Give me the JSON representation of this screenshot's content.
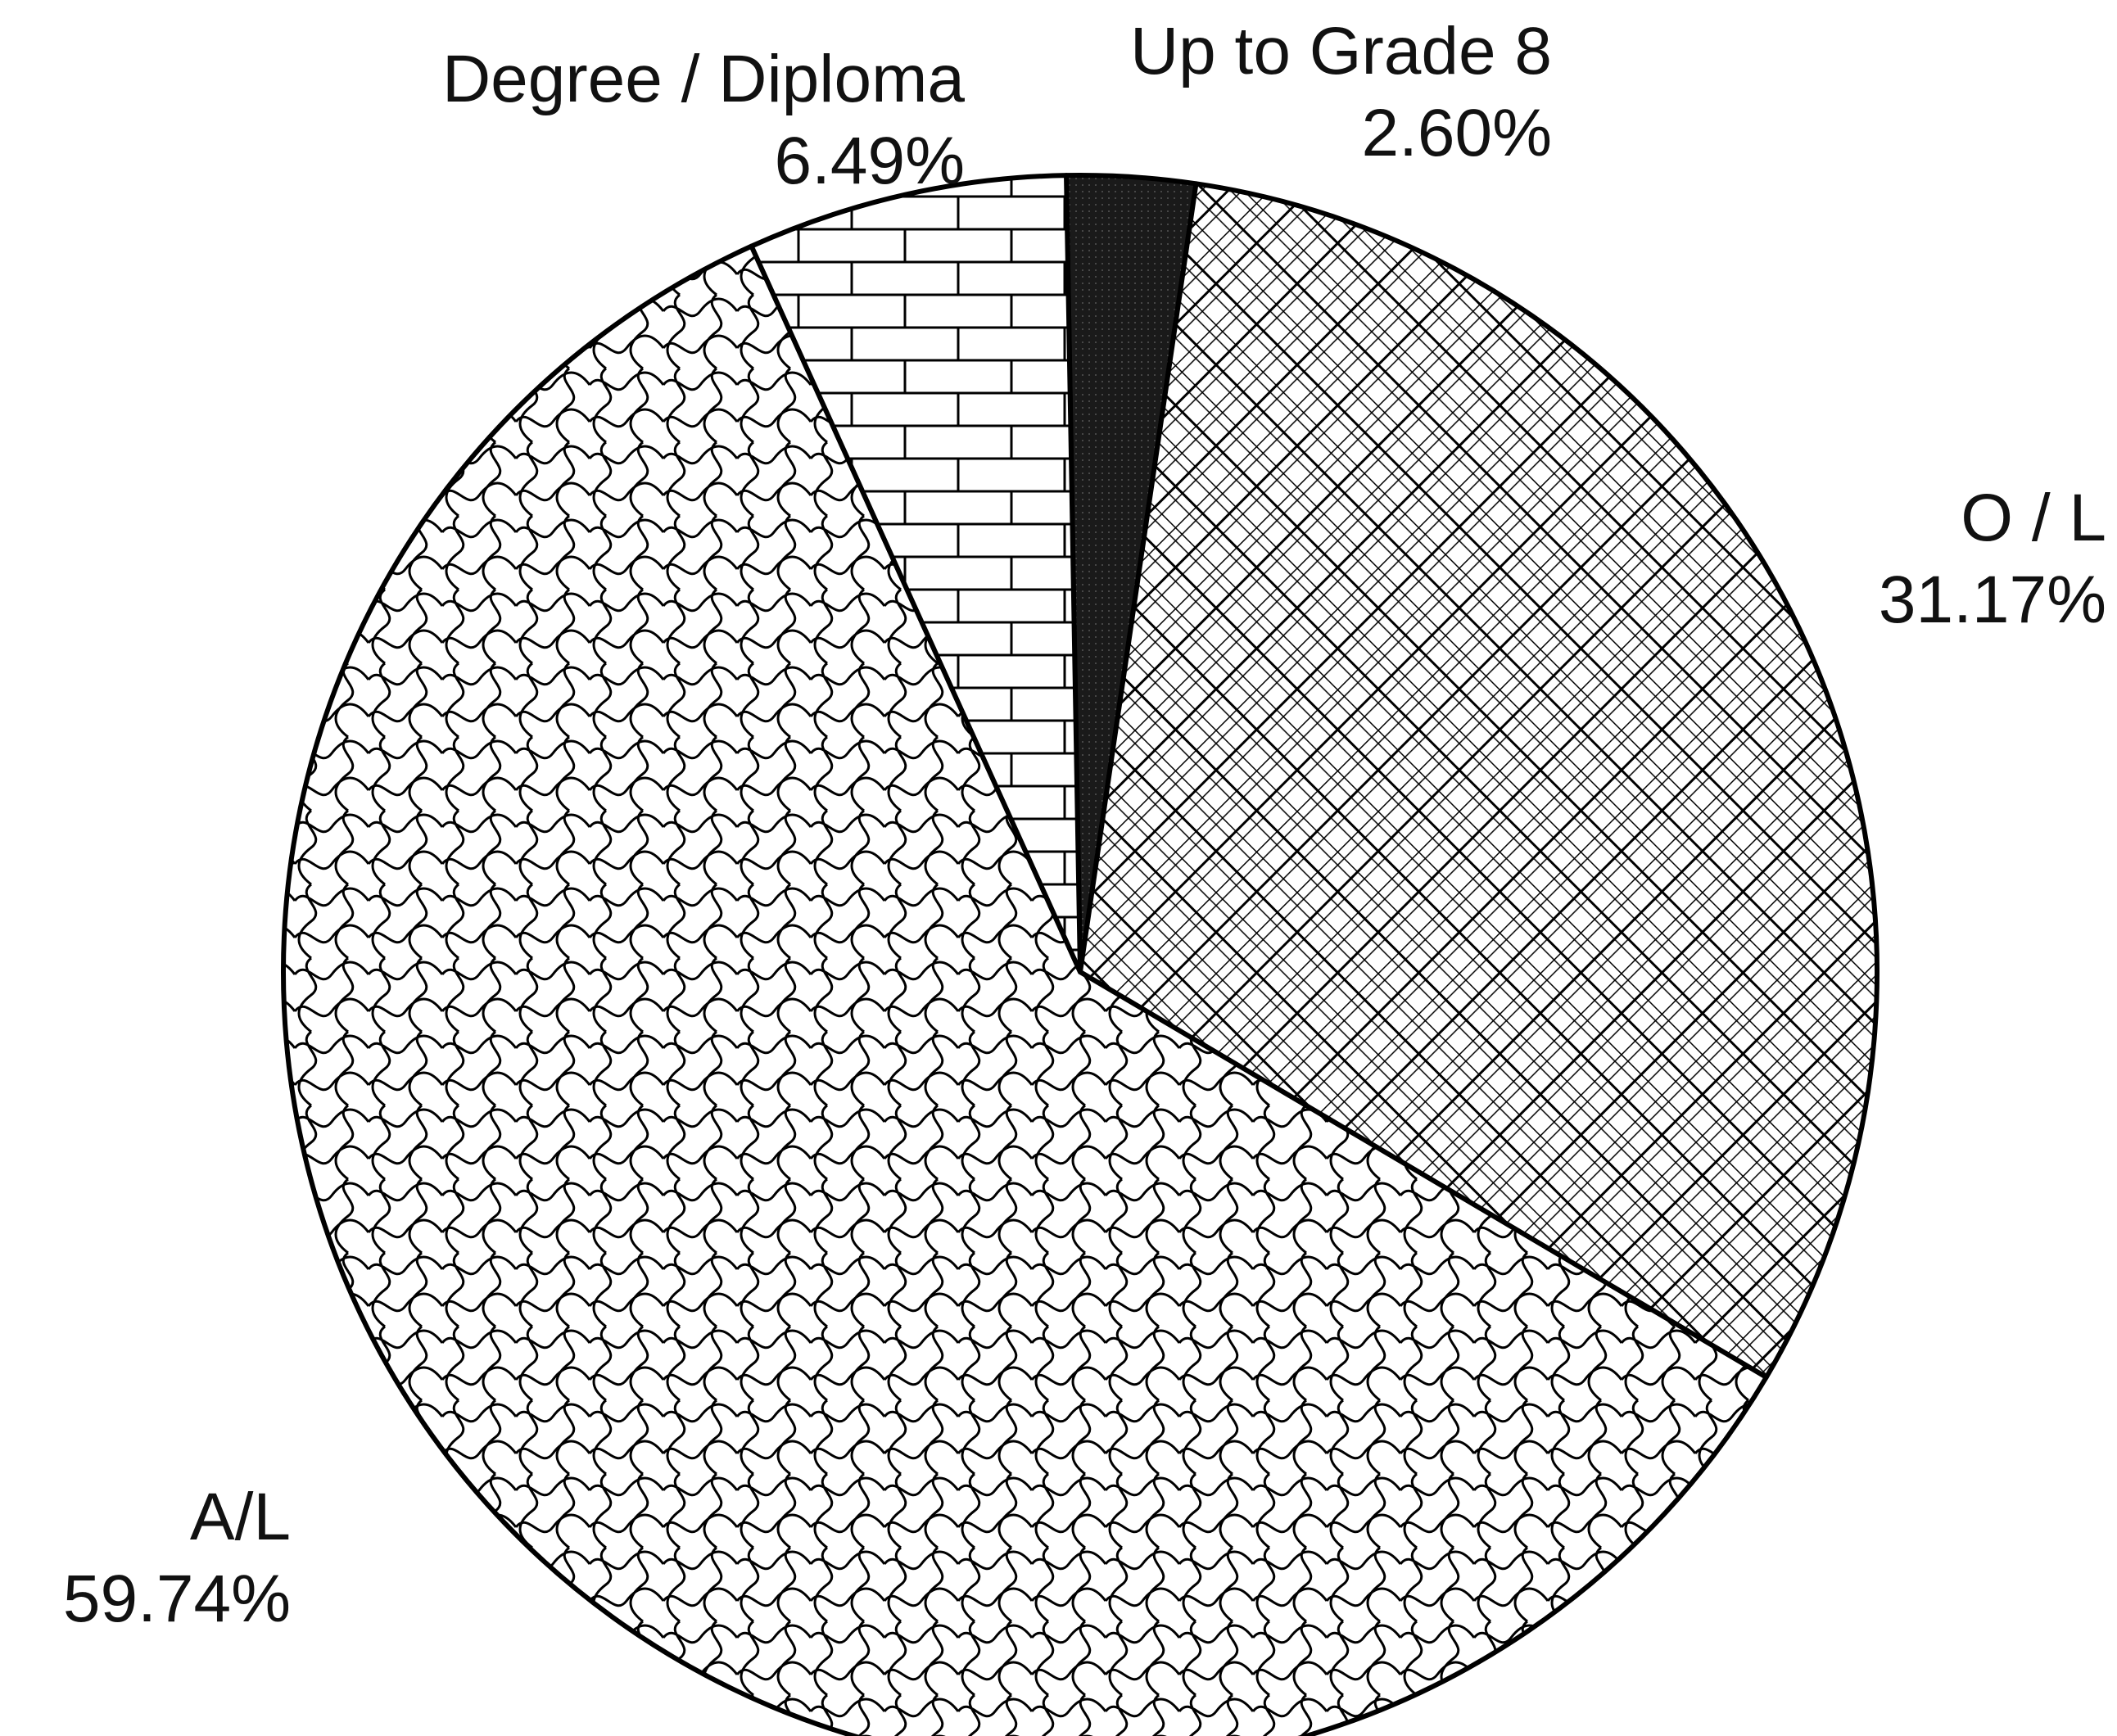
{
  "chart_data": {
    "type": "pie",
    "categories": [
      "Up to Grade 8",
      "O / L",
      "A/L",
      "Degree / Diploma"
    ],
    "values": [
      2.6,
      31.17,
      59.74,
      6.49
    ],
    "value_labels": [
      "2.60%",
      "31.17%",
      "59.74%",
      "6.49%"
    ]
  }
}
